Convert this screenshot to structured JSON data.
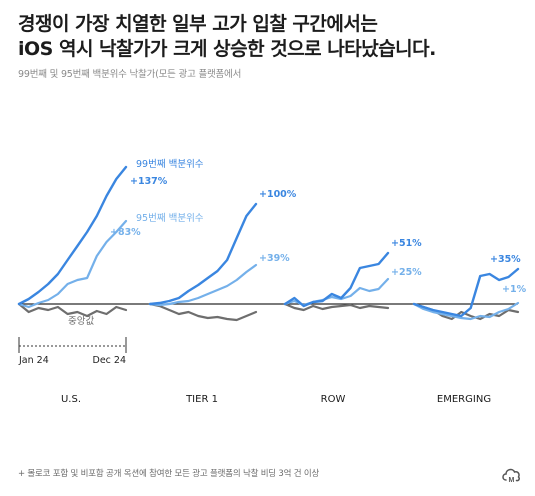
{
  "title_line1": "경쟁이 가장 치열한 일부 고가 입찰 구간에서는",
  "title_line2": "iOS 역시 낙찰가가 크게 상승한 것으로 나타났습니다.",
  "subtitle": "99번째 및 95번째 백분위수 낙찰가(모든 광고 플랫폼에서",
  "footnote": "+ 몰로코 포함 및 비포함 공개 옥션에 참여한 모든 광고 플랫폼의 낙찰 비딩 3억 건 이상",
  "colors": {
    "p99": "#3a86e0",
    "p95": "#74b0ea",
    "median": "#6e6e6e",
    "baseline": "#2a2a2a"
  },
  "chart_data": {
    "type": "line",
    "regions": [
      "U.S.",
      "TIER 1",
      "ROW",
      "EMERGING"
    ],
    "time_axis": {
      "start": "Jan 24",
      "end": "Dec 24"
    },
    "y_unit": "% change vs Jan 24",
    "series": [
      {
        "name": "99번째 백분위수",
        "key": "p99",
        "end_labels": [
          "+137%",
          "+100%",
          "+51%",
          "+35%"
        ],
        "values": [
          [
            0,
            5,
            12,
            20,
            30,
            44,
            58,
            72,
            88,
            108,
            125,
            137
          ],
          [
            0,
            1,
            3,
            6,
            13,
            19,
            26,
            33,
            44,
            66,
            88,
            100
          ],
          [
            0,
            6,
            -2,
            2,
            3,
            10,
            6,
            16,
            36,
            38,
            40,
            51
          ],
          [
            0,
            -3,
            -6,
            -8,
            -10,
            -12,
            -4,
            28,
            30,
            24,
            27,
            35
          ]
        ]
      },
      {
        "name": "95번째 백분위수",
        "key": "p95",
        "end_labels": [
          "+83%",
          "+39%",
          "+25%",
          "+1%"
        ],
        "values": [
          [
            0,
            -3,
            1,
            4,
            10,
            20,
            24,
            26,
            48,
            62,
            72,
            83
          ],
          [
            0,
            -1,
            0,
            2,
            3,
            6,
            10,
            14,
            18,
            24,
            32,
            39
          ],
          [
            0,
            3,
            -1,
            2,
            4,
            7,
            5,
            8,
            16,
            13,
            15,
            25
          ],
          [
            0,
            -5,
            -8,
            -10,
            -12,
            -14,
            -15,
            -12,
            -13,
            -8,
            -5,
            1
          ]
        ]
      },
      {
        "name": "중앙값",
        "key": "median",
        "end_labels": [
          "",
          "",
          "",
          ""
        ],
        "values": [
          [
            0,
            -8,
            -4,
            -6,
            -3,
            -10,
            -8,
            -12,
            -7,
            -10,
            -3,
            -6
          ],
          [
            0,
            -2,
            -6,
            -10,
            -8,
            -12,
            -14,
            -13,
            -15,
            -16,
            -12,
            -8
          ],
          [
            0,
            -4,
            -6,
            -2,
            -5,
            -3,
            -2,
            -1,
            -4,
            -2,
            -3,
            -4
          ],
          [
            0,
            -3,
            -6,
            -12,
            -15,
            -8,
            -12,
            -15,
            -10,
            -12,
            -6,
            -8
          ]
        ]
      }
    ],
    "labels": {
      "p99_text": "99번째 백분위수",
      "p95_text": "95번째 백분위수",
      "median_text": "중앙값"
    },
    "baseline": 0,
    "grid": false
  }
}
